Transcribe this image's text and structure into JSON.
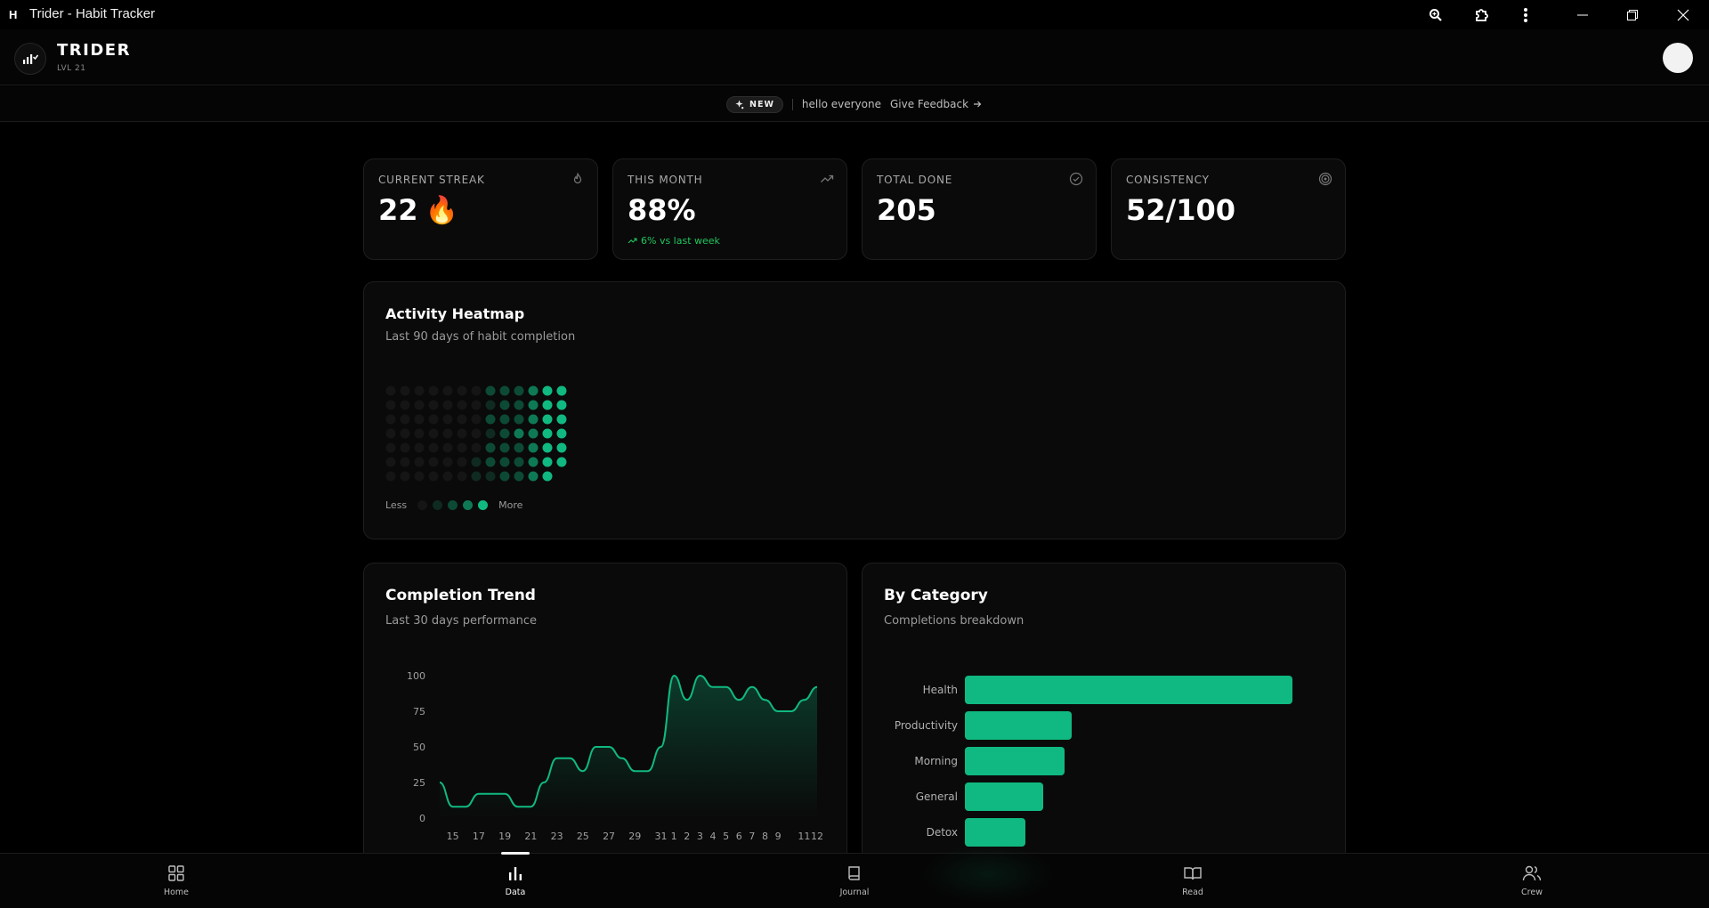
{
  "window": {
    "logo_letter": "H",
    "title": "Trider - Habit Tracker"
  },
  "header": {
    "brand": "TRIDER",
    "level": "LVL 21"
  },
  "announcement": {
    "badge": "NEW",
    "message": "hello everyone",
    "link": "Give Feedback"
  },
  "stats": [
    {
      "label": "CURRENT STREAK",
      "value": "22",
      "emoji": "🔥",
      "icon": "flame-icon"
    },
    {
      "label": "THIS MONTH",
      "value": "88%",
      "sub": "6% vs last week",
      "icon": "trending-up-icon"
    },
    {
      "label": "TOTAL DONE",
      "value": "205",
      "icon": "check-circle-icon"
    },
    {
      "label": "CONSISTENCY",
      "value": "52/100",
      "icon": "target-icon"
    }
  ],
  "heatmap": {
    "title": "Activity Heatmap",
    "subtitle": "Last 90 days of habit completion",
    "legend_less": "Less",
    "legend_more": "More",
    "levels_colors": [
      "#151515",
      "#0f2a20",
      "#0d4a35",
      "#0e7a55",
      "#10b981"
    ],
    "columns": [
      [
        0,
        0,
        0,
        0,
        0,
        0,
        0
      ],
      [
        0,
        0,
        0,
        0,
        0,
        0,
        0
      ],
      [
        0,
        0,
        0,
        0,
        0,
        0,
        0
      ],
      [
        0,
        0,
        0,
        0,
        0,
        0,
        0
      ],
      [
        0,
        0,
        0,
        0,
        0,
        0,
        0
      ],
      [
        0,
        0,
        0,
        0,
        0,
        0,
        0
      ],
      [
        0,
        0,
        0,
        0,
        0,
        1,
        1
      ],
      [
        2,
        1,
        2,
        1,
        2,
        2,
        1
      ],
      [
        2,
        2,
        2,
        2,
        2,
        2,
        2
      ],
      [
        2,
        2,
        2,
        3,
        2,
        2,
        2
      ],
      [
        3,
        3,
        3,
        3,
        3,
        3,
        3
      ],
      [
        4,
        4,
        4,
        4,
        4,
        4,
        4
      ],
      [
        4,
        4,
        4,
        4,
        4,
        4,
        -1
      ]
    ]
  },
  "trend": {
    "title": "Completion Trend",
    "subtitle": "Last 30 days performance",
    "chart_data": {
      "type": "area",
      "x": [
        "14",
        "15",
        "16",
        "17",
        "18",
        "19",
        "20",
        "21",
        "22",
        "23",
        "24",
        "25",
        "26",
        "27",
        "28",
        "29",
        "30",
        "31",
        "1",
        "2",
        "3",
        "4",
        "5",
        "6",
        "7",
        "8",
        "9",
        "10",
        "11",
        "12"
      ],
      "x_tick_labels": [
        "15",
        "17",
        "19",
        "21",
        "23",
        "25",
        "27",
        "29",
        "31",
        "1",
        "2",
        "3",
        "4",
        "5",
        "6",
        "7",
        "8",
        "9",
        "11",
        "12"
      ],
      "values": [
        25,
        8,
        8,
        17,
        17,
        17,
        8,
        8,
        25,
        42,
        42,
        33,
        50,
        50,
        42,
        33,
        33,
        50,
        100,
        83,
        100,
        92,
        92,
        83,
        92,
        83,
        75,
        75,
        83,
        92
      ],
      "ylim": [
        0,
        100
      ],
      "yticks": [
        "100",
        "75",
        "50",
        "25",
        "0"
      ],
      "color": "#10b981"
    }
  },
  "category": {
    "title": "By Category",
    "subtitle": "Completions breakdown",
    "chart_data": {
      "type": "bar",
      "orientation": "horizontal",
      "categories": [
        "Health",
        "Productivity",
        "Morning",
        "General",
        "Detox"
      ],
      "values": [
        92,
        30,
        28,
        22,
        17
      ],
      "color": "#10b981"
    }
  },
  "nav": [
    {
      "label": "Home",
      "icon": "grid-icon"
    },
    {
      "label": "Data",
      "icon": "bar-chart-icon",
      "active": true
    },
    {
      "label": "Journal",
      "icon": "book-icon"
    },
    {
      "label": "Read",
      "icon": "open-book-icon"
    },
    {
      "label": "Crew",
      "icon": "users-icon"
    }
  ]
}
